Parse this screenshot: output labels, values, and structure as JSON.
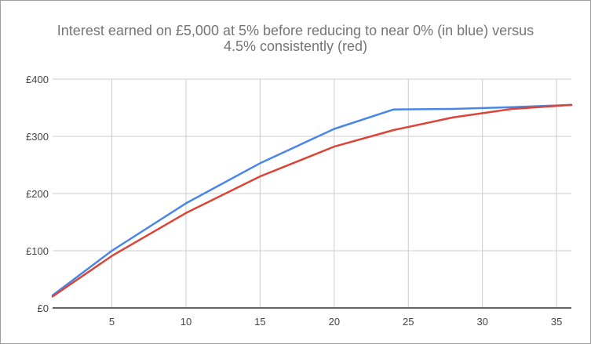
{
  "title_lines": [
    "Interest earned on £5,000 at 5% before reducing to near 0% (in blue) versus",
    "4.5% consistently (red)"
  ],
  "chart_data": {
    "type": "line",
    "title": "Interest earned on £5,000 at 5% before reducing to near 0% (in blue) versus 4.5% consistently (red)",
    "xlabel": "",
    "ylabel": "",
    "xlim": [
      1,
      36
    ],
    "ylim": [
      0,
      400
    ],
    "grid": true,
    "legend": "none",
    "x_ticks": [
      5,
      10,
      15,
      20,
      25,
      30,
      35
    ],
    "y_ticks": [
      {
        "value": 0,
        "label": "£0"
      },
      {
        "value": 100,
        "label": "£100"
      },
      {
        "value": 200,
        "label": "£200"
      },
      {
        "value": 300,
        "label": "£300"
      },
      {
        "value": 400,
        "label": "£400"
      }
    ],
    "x": [
      1,
      5,
      10,
      15,
      20,
      24,
      28,
      32,
      36
    ],
    "series": [
      {
        "color": "#4a86e8",
        "values": [
          22,
          100,
          183,
          253,
          313,
          347,
          348,
          351,
          355
        ]
      },
      {
        "color": "#db4437",
        "values": [
          20,
          91,
          166,
          230,
          282,
          311,
          333,
          348,
          355
        ]
      }
    ]
  }
}
